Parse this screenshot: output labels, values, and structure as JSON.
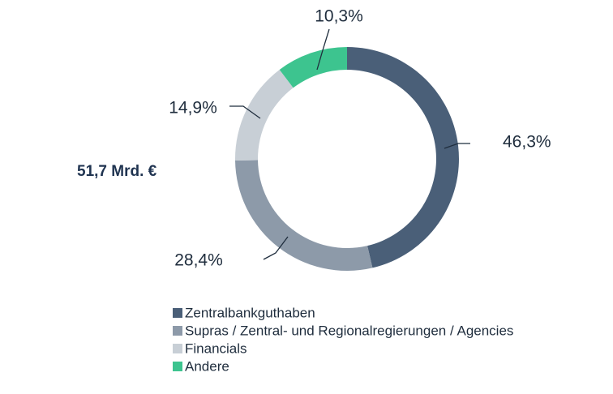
{
  "chart_data": {
    "type": "donut",
    "total_label": "51,7 Mrd. €",
    "categories": [
      "Zentralbankguthaben",
      "Supras / Zentral- und Regionalregierungen / Agencies",
      "Financials",
      "Andere"
    ],
    "values": [
      46.3,
      28.4,
      14.9,
      10.3
    ],
    "value_labels": [
      "46,3%",
      "28,4%",
      "14,9%",
      "10,3%"
    ],
    "colors": [
      "#4a5f78",
      "#8d9aa9",
      "#c8cfd6",
      "#3dc48f"
    ]
  }
}
